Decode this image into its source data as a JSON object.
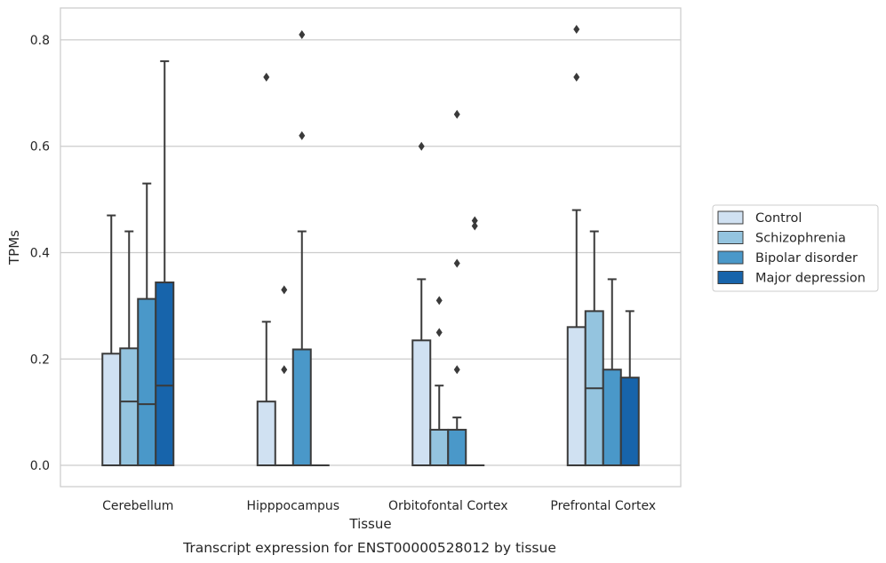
{
  "caption": "Transcript expression for ENST00000528012 by tissue",
  "chart_data": {
    "type": "box",
    "xlabel": "Tissue",
    "ylabel": "TPMs",
    "ylim": [
      -0.04,
      0.86
    ],
    "yticks": [
      0.0,
      0.2,
      0.4,
      0.6,
      0.8
    ],
    "ytick_labels": [
      "0.0",
      "0.2",
      "0.4",
      "0.6",
      "0.8"
    ],
    "grid": "horizontal",
    "legend_position": "right",
    "categories": [
      "Cerebellum",
      "Hipppocampus",
      "Orbitofontal Cortex",
      "Prefrontal Cortex"
    ],
    "series": [
      {
        "name": "Control",
        "color": "#d0e1f2",
        "boxes": [
          {
            "q1": 0.0,
            "median": 0.0,
            "q3": 0.21,
            "whisker_low": 0.0,
            "whisker_high": 0.47,
            "outliers": []
          },
          {
            "q1": 0.0,
            "median": 0.0,
            "q3": 0.12,
            "whisker_low": 0.0,
            "whisker_high": 0.27,
            "outliers": [
              0.73
            ]
          },
          {
            "q1": 0.0,
            "median": 0.0,
            "q3": 0.235,
            "whisker_low": 0.0,
            "whisker_high": 0.35,
            "outliers": [
              0.6
            ]
          },
          {
            "q1": 0.0,
            "median": 0.0,
            "q3": 0.26,
            "whisker_low": 0.0,
            "whisker_high": 0.48,
            "outliers": [
              0.73,
              0.82
            ]
          }
        ]
      },
      {
        "name": "Schizophrenia",
        "color": "#94c4df",
        "boxes": [
          {
            "q1": 0.0,
            "median": 0.12,
            "q3": 0.22,
            "whisker_low": 0.0,
            "whisker_high": 0.44,
            "outliers": []
          },
          {
            "q1": 0.0,
            "median": 0.0,
            "q3": 0.0,
            "whisker_low": 0.0,
            "whisker_high": 0.0,
            "outliers": [
              0.18,
              0.33
            ]
          },
          {
            "q1": 0.0,
            "median": 0.0,
            "q3": 0.067,
            "whisker_low": 0.0,
            "whisker_high": 0.15,
            "outliers": [
              0.25,
              0.31
            ]
          },
          {
            "q1": 0.0,
            "median": 0.145,
            "q3": 0.29,
            "whisker_low": 0.0,
            "whisker_high": 0.44,
            "outliers": []
          }
        ]
      },
      {
        "name": "Bipolar disorder",
        "color": "#4a98c9",
        "boxes": [
          {
            "q1": 0.0,
            "median": 0.115,
            "q3": 0.313,
            "whisker_low": 0.0,
            "whisker_high": 0.53,
            "outliers": []
          },
          {
            "q1": 0.0,
            "median": 0.0,
            "q3": 0.218,
            "whisker_low": 0.0,
            "whisker_high": 0.44,
            "outliers": [
              0.62,
              0.81
            ]
          },
          {
            "q1": 0.0,
            "median": 0.0,
            "q3": 0.067,
            "whisker_low": 0.0,
            "whisker_high": 0.09,
            "outliers": [
              0.18,
              0.38,
              0.66
            ]
          },
          {
            "q1": 0.0,
            "median": 0.0,
            "q3": 0.18,
            "whisker_low": 0.0,
            "whisker_high": 0.35,
            "outliers": []
          }
        ]
      },
      {
        "name": "Major depression",
        "color": "#1764ab",
        "boxes": [
          {
            "q1": 0.0,
            "median": 0.15,
            "q3": 0.344,
            "whisker_low": 0.0,
            "whisker_high": 0.76,
            "outliers": []
          },
          {
            "q1": 0.0,
            "median": 0.0,
            "q3": 0.0,
            "whisker_low": 0.0,
            "whisker_high": 0.0,
            "outliers": []
          },
          {
            "q1": 0.0,
            "median": 0.0,
            "q3": 0.0,
            "whisker_low": 0.0,
            "whisker_high": 0.0,
            "outliers": [
              0.45,
              0.46
            ]
          },
          {
            "q1": 0.0,
            "median": 0.0,
            "q3": 0.165,
            "whisker_low": 0.0,
            "whisker_high": 0.29,
            "outliers": []
          }
        ]
      }
    ]
  }
}
